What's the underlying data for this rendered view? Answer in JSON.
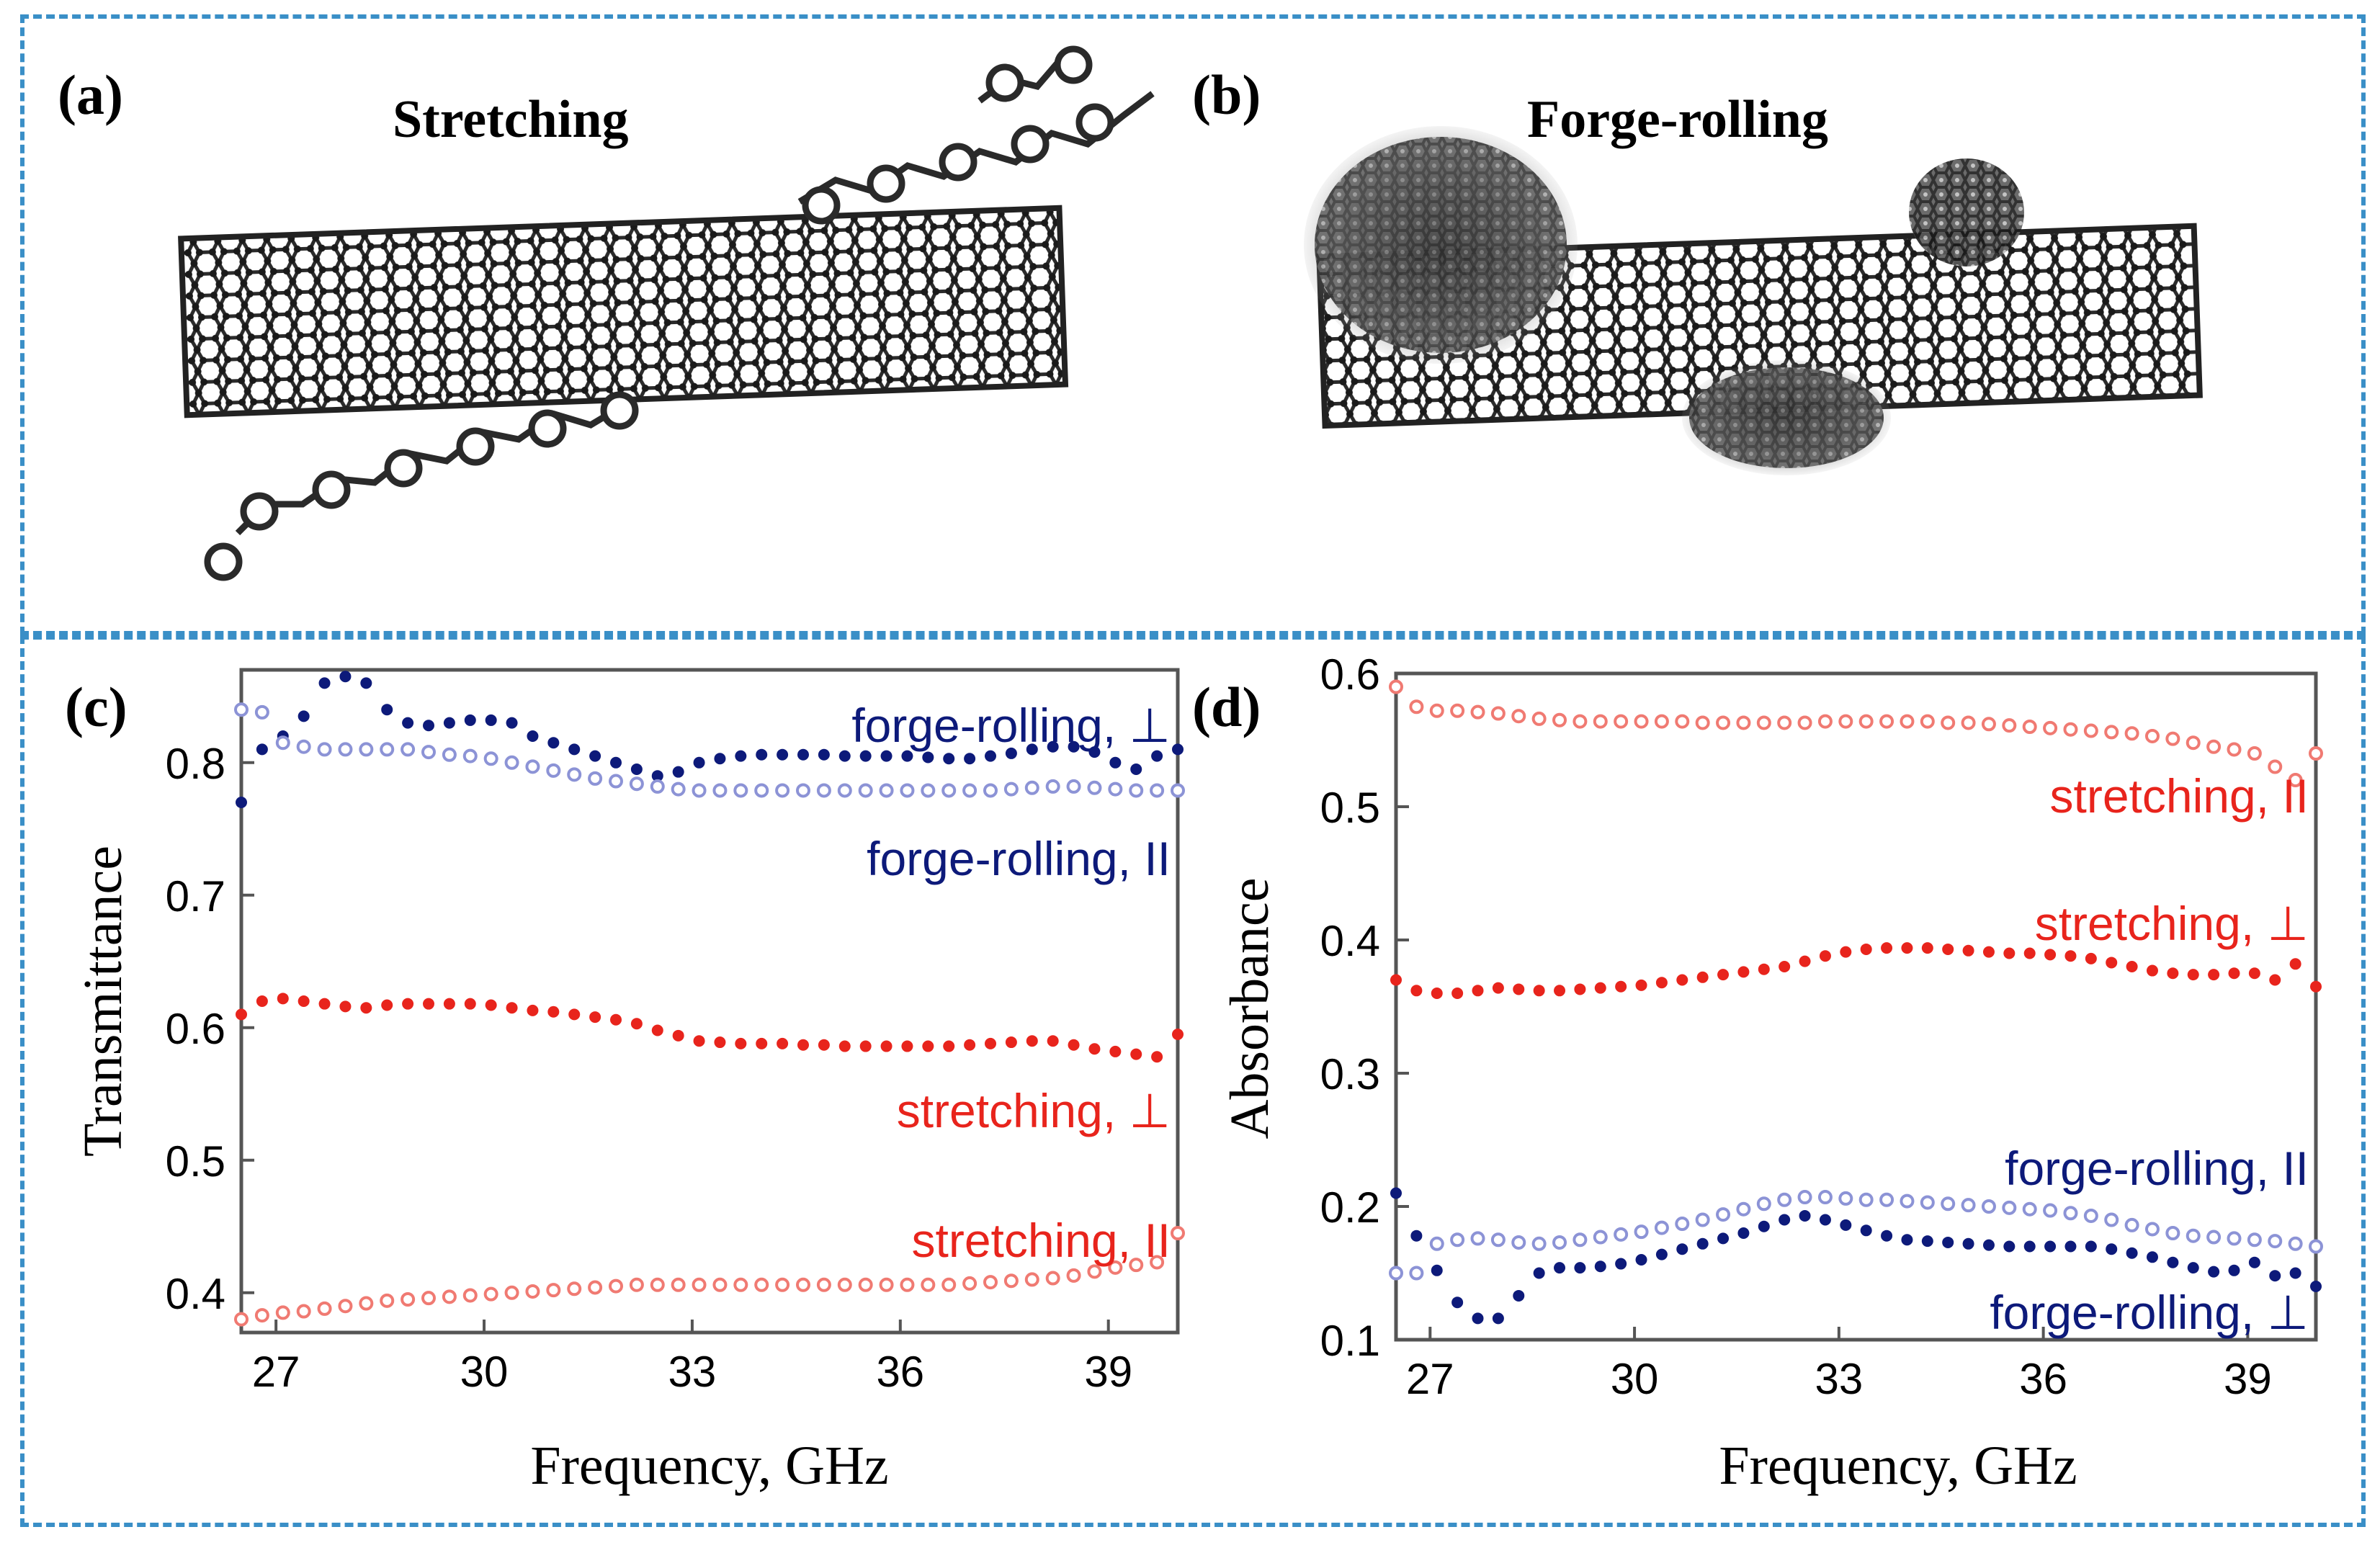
{
  "panels": {
    "a": {
      "label": "(a)",
      "title": "Stretching"
    },
    "b": {
      "label": "(b)",
      "title": "Forge-rolling"
    }
  },
  "chart_data": [
    {
      "panel_label": "(c)",
      "type": "scatter",
      "title": "",
      "xlabel": "Frequency, GHz",
      "ylabel": "Transmittance",
      "xlim": [
        26.5,
        40
      ],
      "ylim": [
        0.37,
        0.87
      ],
      "xticks": [
        "27",
        "30",
        "33",
        "36",
        "39"
      ],
      "yticks": [
        "0.4",
        "0.5",
        "0.6",
        "0.7",
        "0.8"
      ],
      "grid": false,
      "series": [
        {
          "name": "forge-rolling, ⊥",
          "color": "#0d1a7a",
          "marker": "filled",
          "x": [
            26.5,
            26.8,
            27.1,
            27.4,
            27.7,
            28.0,
            28.3,
            28.6,
            28.9,
            29.2,
            29.5,
            29.8,
            30.1,
            30.4,
            30.7,
            31.0,
            31.3,
            31.6,
            31.9,
            32.2,
            32.5,
            32.8,
            33.1,
            33.4,
            33.7,
            34.0,
            34.3,
            34.6,
            34.9,
            35.2,
            35.5,
            35.8,
            36.1,
            36.4,
            36.7,
            37.0,
            37.3,
            37.6,
            37.9,
            38.2,
            38.5,
            38.8,
            39.1,
            39.4,
            39.7,
            40.0
          ],
          "y": [
            0.77,
            0.81,
            0.82,
            0.835,
            0.86,
            0.865,
            0.86,
            0.84,
            0.83,
            0.828,
            0.83,
            0.832,
            0.832,
            0.83,
            0.82,
            0.815,
            0.81,
            0.805,
            0.8,
            0.795,
            0.79,
            0.793,
            0.8,
            0.803,
            0.805,
            0.806,
            0.806,
            0.806,
            0.806,
            0.805,
            0.805,
            0.805,
            0.805,
            0.804,
            0.803,
            0.803,
            0.805,
            0.807,
            0.81,
            0.812,
            0.812,
            0.808,
            0.8,
            0.795,
            0.805,
            0.81
          ]
        },
        {
          "name": "forge-rolling, II",
          "color": "#8c93d6",
          "marker": "open",
          "x": [
            26.5,
            26.8,
            27.1,
            27.4,
            27.7,
            28.0,
            28.3,
            28.6,
            28.9,
            29.2,
            29.5,
            29.8,
            30.1,
            30.4,
            30.7,
            31.0,
            31.3,
            31.6,
            31.9,
            32.2,
            32.5,
            32.8,
            33.1,
            33.4,
            33.7,
            34.0,
            34.3,
            34.6,
            34.9,
            35.2,
            35.5,
            35.8,
            36.1,
            36.4,
            36.7,
            37.0,
            37.3,
            37.6,
            37.9,
            38.2,
            38.5,
            38.8,
            39.1,
            39.4,
            39.7,
            40.0
          ],
          "y": [
            0.84,
            0.838,
            0.815,
            0.812,
            0.81,
            0.81,
            0.81,
            0.81,
            0.81,
            0.808,
            0.806,
            0.805,
            0.803,
            0.8,
            0.797,
            0.794,
            0.791,
            0.788,
            0.786,
            0.784,
            0.782,
            0.78,
            0.779,
            0.779,
            0.779,
            0.779,
            0.779,
            0.779,
            0.779,
            0.779,
            0.779,
            0.779,
            0.779,
            0.779,
            0.779,
            0.779,
            0.779,
            0.78,
            0.781,
            0.782,
            0.782,
            0.781,
            0.78,
            0.779,
            0.779,
            0.779
          ]
        },
        {
          "name": "stretching, ⊥",
          "color": "#e8241c",
          "marker": "filled",
          "x": [
            26.5,
            26.8,
            27.1,
            27.4,
            27.7,
            28.0,
            28.3,
            28.6,
            28.9,
            29.2,
            29.5,
            29.8,
            30.1,
            30.4,
            30.7,
            31.0,
            31.3,
            31.6,
            31.9,
            32.2,
            32.5,
            32.8,
            33.1,
            33.4,
            33.7,
            34.0,
            34.3,
            34.6,
            34.9,
            35.2,
            35.5,
            35.8,
            36.1,
            36.4,
            36.7,
            37.0,
            37.3,
            37.6,
            37.9,
            38.2,
            38.5,
            38.8,
            39.1,
            39.4,
            39.7,
            40.0
          ],
          "y": [
            0.61,
            0.62,
            0.622,
            0.62,
            0.618,
            0.616,
            0.615,
            0.617,
            0.618,
            0.618,
            0.618,
            0.618,
            0.617,
            0.615,
            0.613,
            0.612,
            0.61,
            0.608,
            0.606,
            0.603,
            0.598,
            0.594,
            0.59,
            0.589,
            0.588,
            0.588,
            0.588,
            0.587,
            0.587,
            0.586,
            0.586,
            0.586,
            0.586,
            0.586,
            0.586,
            0.587,
            0.588,
            0.589,
            0.59,
            0.59,
            0.587,
            0.584,
            0.582,
            0.58,
            0.578,
            0.595
          ]
        },
        {
          "name": "stretching, II",
          "color": "#f07a72",
          "marker": "open",
          "x": [
            26.5,
            26.8,
            27.1,
            27.4,
            27.7,
            28.0,
            28.3,
            28.6,
            28.9,
            29.2,
            29.5,
            29.8,
            30.1,
            30.4,
            30.7,
            31.0,
            31.3,
            31.6,
            31.9,
            32.2,
            32.5,
            32.8,
            33.1,
            33.4,
            33.7,
            34.0,
            34.3,
            34.6,
            34.9,
            35.2,
            35.5,
            35.8,
            36.1,
            36.4,
            36.7,
            37.0,
            37.3,
            37.6,
            37.9,
            38.2,
            38.5,
            38.8,
            39.1,
            39.4,
            39.7,
            40.0
          ],
          "y": [
            0.38,
            0.383,
            0.385,
            0.386,
            0.388,
            0.39,
            0.392,
            0.394,
            0.395,
            0.396,
            0.397,
            0.398,
            0.399,
            0.4,
            0.401,
            0.402,
            0.403,
            0.404,
            0.405,
            0.406,
            0.406,
            0.406,
            0.406,
            0.406,
            0.406,
            0.406,
            0.406,
            0.406,
            0.406,
            0.406,
            0.406,
            0.406,
            0.406,
            0.406,
            0.406,
            0.407,
            0.408,
            0.409,
            0.41,
            0.411,
            0.413,
            0.416,
            0.419,
            0.421,
            0.423,
            0.445
          ]
        }
      ],
      "annotations": [
        {
          "text": "forge-rolling, ⊥",
          "color": "#0d1a7a"
        },
        {
          "text": "forge-rolling, II",
          "color": "#0d1a7a"
        },
        {
          "text": "stretching, ⊥",
          "color": "#e8241c"
        },
        {
          "text": "stretching, II",
          "color": "#e8241c"
        }
      ]
    },
    {
      "panel_label": "(d)",
      "type": "scatter",
      "title": "",
      "xlabel": "Frequency, GHz",
      "ylabel": "Absorbance",
      "xlim": [
        26.5,
        40
      ],
      "ylim": [
        0.1,
        0.6
      ],
      "xticks": [
        "27",
        "30",
        "33",
        "36",
        "39"
      ],
      "yticks": [
        "0.1",
        "0.2",
        "0.3",
        "0.4",
        "0.5",
        "0.6"
      ],
      "grid": false,
      "series": [
        {
          "name": "stretching, II",
          "color": "#f07a72",
          "marker": "open",
          "x": [
            26.5,
            26.8,
            27.1,
            27.4,
            27.7,
            28.0,
            28.3,
            28.6,
            28.9,
            29.2,
            29.5,
            29.8,
            30.1,
            30.4,
            30.7,
            31.0,
            31.3,
            31.6,
            31.9,
            32.2,
            32.5,
            32.8,
            33.1,
            33.4,
            33.7,
            34.0,
            34.3,
            34.6,
            34.9,
            35.2,
            35.5,
            35.8,
            36.1,
            36.4,
            36.7,
            37.0,
            37.3,
            37.6,
            37.9,
            38.2,
            38.5,
            38.8,
            39.1,
            39.4,
            39.7,
            40.0
          ],
          "y": [
            0.59,
            0.575,
            0.572,
            0.572,
            0.571,
            0.57,
            0.568,
            0.566,
            0.565,
            0.564,
            0.564,
            0.564,
            0.564,
            0.564,
            0.564,
            0.563,
            0.563,
            0.563,
            0.563,
            0.563,
            0.563,
            0.564,
            0.564,
            0.564,
            0.564,
            0.564,
            0.564,
            0.563,
            0.563,
            0.562,
            0.561,
            0.56,
            0.559,
            0.558,
            0.557,
            0.556,
            0.555,
            0.553,
            0.551,
            0.548,
            0.545,
            0.543,
            0.54,
            0.53,
            0.52,
            0.54
          ]
        },
        {
          "name": "stretching, ⊥",
          "color": "#e8241c",
          "marker": "filled",
          "x": [
            26.5,
            26.8,
            27.1,
            27.4,
            27.7,
            28.0,
            28.3,
            28.6,
            28.9,
            29.2,
            29.5,
            29.8,
            30.1,
            30.4,
            30.7,
            31.0,
            31.3,
            31.6,
            31.9,
            32.2,
            32.5,
            32.8,
            33.1,
            33.4,
            33.7,
            34.0,
            34.3,
            34.6,
            34.9,
            35.2,
            35.5,
            35.8,
            36.1,
            36.4,
            36.7,
            37.0,
            37.3,
            37.6,
            37.9,
            38.2,
            38.5,
            38.8,
            39.1,
            39.4,
            39.7,
            40.0
          ],
          "y": [
            0.37,
            0.362,
            0.36,
            0.36,
            0.362,
            0.364,
            0.363,
            0.362,
            0.362,
            0.363,
            0.364,
            0.365,
            0.366,
            0.368,
            0.37,
            0.372,
            0.374,
            0.376,
            0.378,
            0.38,
            0.384,
            0.388,
            0.391,
            0.393,
            0.394,
            0.394,
            0.394,
            0.393,
            0.392,
            0.391,
            0.39,
            0.39,
            0.389,
            0.388,
            0.386,
            0.383,
            0.38,
            0.377,
            0.375,
            0.374,
            0.374,
            0.375,
            0.375,
            0.37,
            0.382,
            0.365
          ]
        },
        {
          "name": "forge-rolling, II",
          "color": "#8c93d6",
          "marker": "open",
          "x": [
            26.5,
            26.8,
            27.1,
            27.4,
            27.7,
            28.0,
            28.3,
            28.6,
            28.9,
            29.2,
            29.5,
            29.8,
            30.1,
            30.4,
            30.7,
            31.0,
            31.3,
            31.6,
            31.9,
            32.2,
            32.5,
            32.8,
            33.1,
            33.4,
            33.7,
            34.0,
            34.3,
            34.6,
            34.9,
            35.2,
            35.5,
            35.8,
            36.1,
            36.4,
            36.7,
            37.0,
            37.3,
            37.6,
            37.9,
            38.2,
            38.5,
            38.8,
            39.1,
            39.4,
            39.7,
            40.0
          ],
          "y": [
            0.15,
            0.15,
            0.172,
            0.175,
            0.176,
            0.175,
            0.173,
            0.172,
            0.173,
            0.175,
            0.177,
            0.179,
            0.181,
            0.184,
            0.187,
            0.19,
            0.194,
            0.198,
            0.202,
            0.205,
            0.207,
            0.207,
            0.206,
            0.205,
            0.205,
            0.204,
            0.203,
            0.202,
            0.201,
            0.2,
            0.199,
            0.198,
            0.197,
            0.195,
            0.193,
            0.19,
            0.186,
            0.183,
            0.18,
            0.178,
            0.177,
            0.176,
            0.175,
            0.174,
            0.172,
            0.17
          ]
        },
        {
          "name": "forge-rolling, ⊥",
          "color": "#0d1a7a",
          "marker": "filled",
          "x": [
            26.5,
            26.8,
            27.1,
            27.4,
            27.7,
            28.0,
            28.3,
            28.6,
            28.9,
            29.2,
            29.5,
            29.8,
            30.1,
            30.4,
            30.7,
            31.0,
            31.3,
            31.6,
            31.9,
            32.2,
            32.5,
            32.8,
            33.1,
            33.4,
            33.7,
            34.0,
            34.3,
            34.6,
            34.9,
            35.2,
            35.5,
            35.8,
            36.1,
            36.4,
            36.7,
            37.0,
            37.3,
            37.6,
            37.9,
            38.2,
            38.5,
            38.8,
            39.1,
            39.4,
            39.7,
            40.0
          ],
          "y": [
            0.21,
            0.178,
            0.152,
            0.128,
            0.116,
            0.116,
            0.133,
            0.15,
            0.154,
            0.154,
            0.155,
            0.157,
            0.16,
            0.164,
            0.168,
            0.172,
            0.176,
            0.18,
            0.185,
            0.19,
            0.193,
            0.19,
            0.186,
            0.182,
            0.178,
            0.175,
            0.174,
            0.173,
            0.172,
            0.171,
            0.17,
            0.17,
            0.17,
            0.17,
            0.17,
            0.168,
            0.165,
            0.162,
            0.158,
            0.154,
            0.151,
            0.152,
            0.158,
            0.148,
            0.15,
            0.14
          ]
        }
      ],
      "annotations": [
        {
          "text": "stretching, II",
          "color": "#e8241c"
        },
        {
          "text": "stretching, ⊥",
          "color": "#e8241c"
        },
        {
          "text": "forge-rolling, II",
          "color": "#0d1a7a"
        },
        {
          "text": "forge-rolling, ⊥",
          "color": "#0d1a7a"
        }
      ]
    }
  ]
}
